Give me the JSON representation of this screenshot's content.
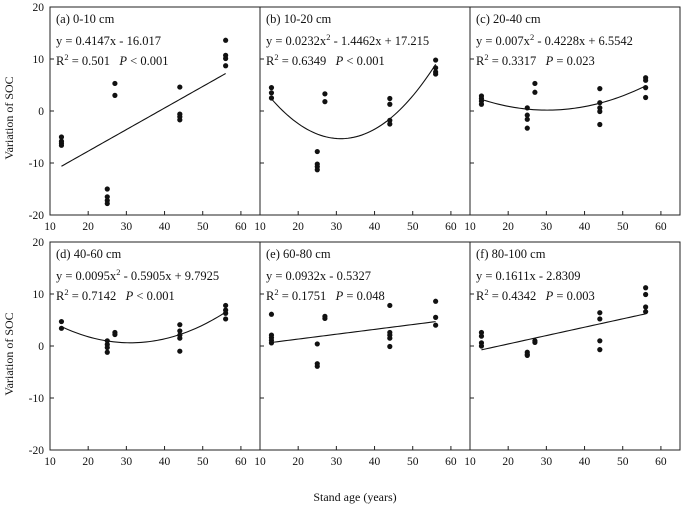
{
  "figure": {
    "xlabel": "Stand age (years)",
    "ylabel": "Variation of SOC",
    "xticks": [
      10,
      20,
      30,
      40,
      50,
      60
    ],
    "yticks": [
      -20,
      -10,
      0,
      10,
      20
    ],
    "xlim": [
      10,
      65
    ],
    "ylim": [
      -20,
      20
    ]
  },
  "chart_data": [
    {
      "type": "scatter",
      "title": "(a) 0-10 cm",
      "equation": "y = 0.4147x - 16.017",
      "r2_label": "R",
      "r2_sup": "2",
      "r2_value": " = 0.501",
      "p_label": "P",
      "p_value": " < 0.001",
      "fit": {
        "type": "linear",
        "coef": [
          0.4147,
          -16.017
        ],
        "x_range": [
          13,
          56
        ]
      },
      "points": [
        [
          13,
          -5
        ],
        [
          13,
          -5.8
        ],
        [
          13,
          -6.2
        ],
        [
          13,
          -6.6
        ],
        [
          25,
          -15
        ],
        [
          25,
          -16.5
        ],
        [
          25,
          -17.2
        ],
        [
          25,
          -17.8
        ],
        [
          27,
          5.3
        ],
        [
          27,
          3
        ],
        [
          44,
          4.6
        ],
        [
          44,
          -0.6
        ],
        [
          44,
          -1.1
        ],
        [
          44,
          -1.7
        ],
        [
          56,
          13.6
        ],
        [
          56,
          10.7
        ],
        [
          56,
          10.1
        ],
        [
          56,
          8.7
        ]
      ]
    },
    {
      "type": "scatter",
      "title": "(b) 10-20 cm",
      "equation": "y = 0.0232x",
      "eq_sup": "2",
      "equation_tail": " - 1.4462x + 17.215",
      "r2_label": "R",
      "r2_sup": "2",
      "r2_value": " = 0.6349",
      "p_label": "P",
      "p_value": " < 0.001",
      "fit": {
        "type": "quadratic",
        "coef": [
          0.0232,
          -1.4462,
          17.215
        ],
        "x_range": [
          13,
          56
        ]
      },
      "points": [
        [
          13,
          4.5
        ],
        [
          13,
          3.5
        ],
        [
          13,
          2.5
        ],
        [
          25,
          -7.8
        ],
        [
          25,
          -10.2
        ],
        [
          25,
          -10.7
        ],
        [
          25,
          -11.3
        ],
        [
          27,
          3.3
        ],
        [
          27,
          1.8
        ],
        [
          44,
          2.4
        ],
        [
          44,
          1.3
        ],
        [
          44,
          -1.8
        ],
        [
          44,
          -2.5
        ],
        [
          56,
          9.8
        ],
        [
          56,
          8.3
        ],
        [
          56,
          7.5
        ],
        [
          56,
          7.1
        ]
      ]
    },
    {
      "type": "scatter",
      "title": "(c) 20-40 cm",
      "equation": "y = 0.007x",
      "eq_sup": "2",
      "equation_tail": " - 0.4228x + 6.5542",
      "r2_label": "R",
      "r2_sup": "2",
      "r2_value": " = 0.3317",
      "p_label": "P",
      "p_value": " = 0.023",
      "fit": {
        "type": "quadratic",
        "coef": [
          0.007,
          -0.4228,
          6.5542
        ],
        "x_range": [
          13,
          56
        ]
      },
      "points": [
        [
          13,
          2.9
        ],
        [
          13,
          2.4
        ],
        [
          13,
          1.9
        ],
        [
          13,
          1.3
        ],
        [
          25,
          0.6
        ],
        [
          25,
          -0.8
        ],
        [
          25,
          -1.6
        ],
        [
          25,
          -3.3
        ],
        [
          27,
          5.3
        ],
        [
          27,
          3.6
        ],
        [
          44,
          4.3
        ],
        [
          44,
          1.6
        ],
        [
          44,
          0.6
        ],
        [
          44,
          -0.1
        ],
        [
          44,
          -2.6
        ],
        [
          56,
          6.4
        ],
        [
          56,
          5.9
        ],
        [
          56,
          4.5
        ],
        [
          56,
          2.6
        ]
      ]
    },
    {
      "type": "scatter",
      "title": "(d) 40-60 cm",
      "equation": "y = 0.0095x",
      "eq_sup": "2",
      "equation_tail": " - 0.5905x + 9.7925",
      "r2_label": "R",
      "r2_sup": "2",
      "r2_value": " = 0.7142",
      "p_label": "P",
      "p_value": " < 0.001",
      "fit": {
        "type": "quadratic",
        "coef": [
          0.0095,
          -0.5905,
          9.7925
        ],
        "x_range": [
          13,
          56
        ]
      },
      "points": [
        [
          13,
          4.7
        ],
        [
          13,
          3.4
        ],
        [
          25,
          1
        ],
        [
          25,
          0.3
        ],
        [
          25,
          -0.3
        ],
        [
          25,
          -1.2
        ],
        [
          27,
          2.6
        ],
        [
          27,
          2.2
        ],
        [
          44,
          4.1
        ],
        [
          44,
          2.9
        ],
        [
          44,
          2.1
        ],
        [
          44,
          1.5
        ],
        [
          44,
          -1
        ],
        [
          56,
          7.8
        ],
        [
          56,
          6.9
        ],
        [
          56,
          6.3
        ],
        [
          56,
          5.2
        ]
      ]
    },
    {
      "type": "scatter",
      "title": "(e) 60-80 cm",
      "equation": "y = 0.0932x - 0.5327",
      "r2_label": "R",
      "r2_sup": "2",
      "r2_value": " = 0.1751",
      "p_label": "P",
      "p_value": " = 0.048",
      "fit": {
        "type": "linear",
        "coef": [
          0.0932,
          -0.5327
        ],
        "x_range": [
          13,
          56
        ]
      },
      "points": [
        [
          13,
          6.1
        ],
        [
          13,
          2.1
        ],
        [
          13,
          1.6
        ],
        [
          13,
          1.1
        ],
        [
          13,
          0.6
        ],
        [
          25,
          0.4
        ],
        [
          25,
          -3.4
        ],
        [
          25,
          -3.9
        ],
        [
          27,
          5.7
        ],
        [
          27,
          5.3
        ],
        [
          44,
          7.8
        ],
        [
          44,
          2.6
        ],
        [
          44,
          2.1
        ],
        [
          44,
          1.5
        ],
        [
          44,
          -0.1
        ],
        [
          56,
          8.6
        ],
        [
          56,
          5.5
        ],
        [
          56,
          4
        ]
      ]
    },
    {
      "type": "scatter",
      "title": "(f) 80-100 cm",
      "equation": "y = 0.1611x - 2.8309",
      "r2_label": "R",
      "r2_sup": "2",
      "r2_value": " = 0.4342",
      "p_label": "P",
      "p_value": " = 0.003",
      "fit": {
        "type": "linear",
        "coef": [
          0.1611,
          -2.8309
        ],
        "x_range": [
          13,
          56
        ]
      },
      "points": [
        [
          13,
          2.6
        ],
        [
          13,
          1.9
        ],
        [
          13,
          0.6
        ],
        [
          13,
          0
        ],
        [
          25,
          -1.2
        ],
        [
          25,
          -1.6
        ],
        [
          25,
          -1.8
        ],
        [
          27,
          1
        ],
        [
          27,
          0.7
        ],
        [
          44,
          6.4
        ],
        [
          44,
          5.2
        ],
        [
          44,
          1
        ],
        [
          44,
          -0.7
        ],
        [
          56,
          11.2
        ],
        [
          56,
          9.9
        ],
        [
          56,
          7.5
        ],
        [
          56,
          6.6
        ]
      ]
    }
  ]
}
